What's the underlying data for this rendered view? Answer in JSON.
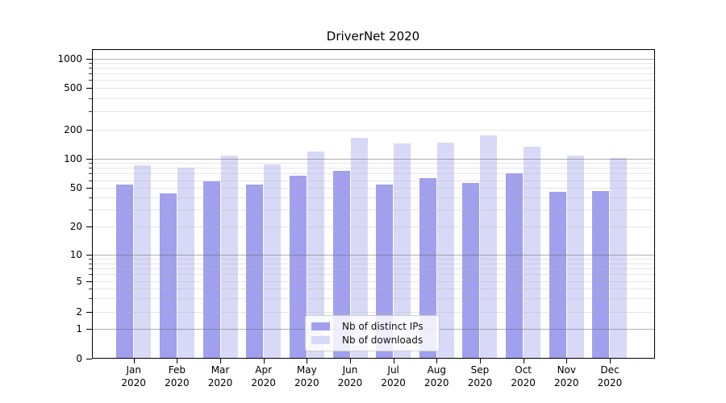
{
  "chart_data": {
    "type": "bar",
    "title": "DriverNet 2020",
    "yscale": "symlog",
    "ylim": [
      0,
      1250
    ],
    "grid": true,
    "legend_position": "lower center",
    "categories": [
      "Jan",
      "Feb",
      "Mar",
      "Apr",
      "May",
      "Jun",
      "Jul",
      "Aug",
      "Sep",
      "Oct",
      "Nov",
      "Dec"
    ],
    "category_year": "2020",
    "yticks": [
      1000,
      500,
      200,
      100,
      50,
      20,
      10,
      5,
      2,
      1,
      0
    ],
    "major_gridlines": [
      1,
      10,
      100,
      1000
    ],
    "minor_gridlines": [
      2,
      3,
      4,
      5,
      6,
      7,
      8,
      9,
      20,
      30,
      40,
      50,
      60,
      70,
      80,
      90,
      200,
      300,
      400,
      500,
      600,
      700,
      800,
      900
    ],
    "series": [
      {
        "name": "Nb of distinct IPs",
        "color": "#a0a0ee",
        "values": [
          54,
          44,
          58,
          54,
          67,
          74,
          54,
          63,
          56,
          71,
          46,
          47
        ]
      },
      {
        "name": "Nb of downloads",
        "color": "#d8d8f7",
        "values": [
          86,
          81,
          108,
          87,
          118,
          163,
          144,
          145,
          174,
          134,
          108,
          101
        ]
      }
    ]
  },
  "colors": {
    "background": "#ffffff",
    "spine": "#000000",
    "major_grid": "#afafaf",
    "minor_grid": "#e6e6e6",
    "text": "#000000"
  }
}
